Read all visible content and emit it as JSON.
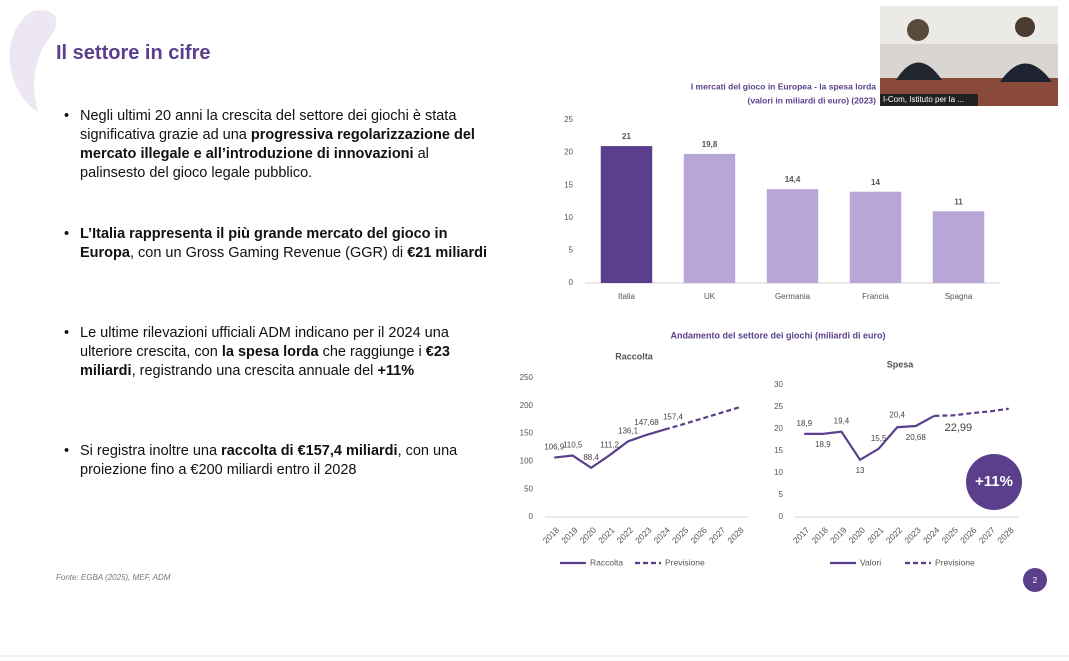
{
  "slide_title": "Il settore in cifre",
  "bullets": [
    [
      {
        "text": "Negli ultimi 20 anni la crescita del settore dei giochi è stata significativa grazie ad una ",
        "bold": false
      },
      {
        "text": "progressiva regolarizzazione del mercato illegale e all’introduzione di innovazioni",
        "bold": true
      },
      {
        "text": " al palinsesto del gioco legale pubblico.",
        "bold": false
      }
    ],
    [
      {
        "text": "L’Italia rappresenta il più grande mercato del gioco in Europa",
        "bold": true
      },
      {
        "text": ", con un Gross Gaming Revenue (GGR) di ",
        "bold": false
      },
      {
        "text": "€21 miliardi",
        "bold": true
      }
    ],
    [
      {
        "text": "Le ultime rilevazioni ufficiali ADM indicano per il 2024 una ulteriore crescita, con ",
        "bold": false
      },
      {
        "text": "la spesa lorda",
        "bold": true
      },
      {
        "text": " che raggiunge i ",
        "bold": false
      },
      {
        "text": "€23 miliardi",
        "bold": true
      },
      {
        "text": ", registrando una crescita annuale del ",
        "bold": false
      },
      {
        "text": "+11%",
        "bold": true
      }
    ],
    [
      {
        "text": "Si registra inoltre una ",
        "bold": false
      },
      {
        "text": "raccolta di €157,4 miliardi",
        "bold": true
      },
      {
        "text": ", con una proiezione fino a €200 miliardi entro il 2028",
        "bold": false
      }
    ]
  ],
  "source": "Fonte: EGBA (2025), MEF, ADM",
  "page_number": "2",
  "trend_title": "Andamento del settore dei giochi (miliardi di euro)",
  "badge": "+11%",
  "video_label": "I-Com, Istituto per la ...",
  "chart_data": [
    {
      "type": "bar",
      "title": "I mercati del gioco in Europea - la spesa lorda",
      "subtitle": "(valori in miliardi di euro) (2023)",
      "categories": [
        "Italia",
        "UK",
        "Germania",
        "Francia",
        "Spagna"
      ],
      "values": [
        21,
        19.8,
        14.4,
        14,
        11
      ],
      "value_labels": [
        "21",
        "19,8",
        "14,4",
        "14",
        "11"
      ],
      "colors": [
        "#5b3f8c",
        "#b9a6d8",
        "#b9a6d8",
        "#b9a6d8",
        "#b9a6d8"
      ],
      "ylim": [
        0,
        25
      ],
      "yticks": [
        0,
        5,
        10,
        15,
        20,
        25
      ],
      "grid": false
    },
    {
      "type": "line",
      "title": "Raccolta",
      "categories": [
        "2018",
        "2019",
        "2020",
        "2021",
        "2022",
        "2023",
        "2024",
        "2025",
        "2026",
        "2027",
        "2028"
      ],
      "series": [
        {
          "name": "Raccolta",
          "color": "#5b3f8c",
          "dash": false,
          "values": [
            106.9,
            110.5,
            88.4,
            111.2,
            136.1,
            147.68,
            157.4,
            null,
            null,
            null,
            null
          ],
          "value_labels": [
            "106,9",
            "110,5",
            "88,4",
            "111,2",
            "136,1",
            "147,68",
            "157,4",
            null,
            null,
            null,
            null
          ]
        },
        {
          "name": "Previsione",
          "color": "#5b3f8c",
          "dash": true,
          "values": [
            null,
            null,
            null,
            null,
            null,
            null,
            157.4,
            167,
            177,
            187,
            197
          ]
        }
      ],
      "ylim": [
        0,
        250
      ],
      "yticks": [
        0,
        50,
        100,
        150,
        200,
        250
      ],
      "grid": false
    },
    {
      "type": "line",
      "title": "Spesa",
      "categories": [
        "2017",
        "2018",
        "2019",
        "2020",
        "2021",
        "2022",
        "2023",
        "2024",
        "2025",
        "2026",
        "2027",
        "2028"
      ],
      "series": [
        {
          "name": "Valori",
          "color": "#5b3f8c",
          "dash": false,
          "values": [
            18.9,
            18.9,
            19.4,
            13,
            15.5,
            20.4,
            20.68,
            22.99,
            null,
            null,
            null,
            null
          ],
          "value_labels": [
            "18,9",
            "18,9",
            "19,4",
            "13",
            "15,5",
            "20,4",
            "20,68",
            "22,99",
            null,
            null,
            null,
            null
          ]
        },
        {
          "name": "Previsione",
          "color": "#5b3f8c",
          "dash": true,
          "values": [
            null,
            null,
            null,
            null,
            null,
            null,
            null,
            22.99,
            23.1,
            23.6,
            24.0,
            24.6
          ]
        }
      ],
      "ylim": [
        0,
        30
      ],
      "yticks": [
        0,
        5,
        10,
        15,
        20,
        25,
        30
      ],
      "grid": false
    }
  ]
}
